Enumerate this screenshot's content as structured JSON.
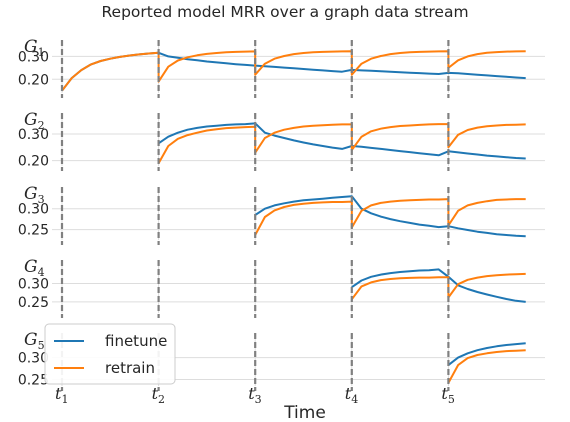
{
  "chart_data": {
    "type": "line",
    "title": "Reported model MRR over a graph data stream",
    "xlabel": "Time",
    "ylabel": "",
    "grid": true,
    "legend_location": "lower-left of last panel",
    "x_range": [
      0,
      50
    ],
    "event_ticks": [
      {
        "x": 0,
        "base": "t",
        "sub": "1"
      },
      {
        "x": 10,
        "base": "t",
        "sub": "2"
      },
      {
        "x": 20,
        "base": "t",
        "sub": "3"
      },
      {
        "x": 30,
        "base": "t",
        "sub": "4"
      },
      {
        "x": 40,
        "base": "t",
        "sub": "5"
      }
    ],
    "colors": {
      "finetune": "#1f77b4",
      "retrain": "#ff7f0e",
      "event_line": "#808080",
      "grid": "#dddddd"
    },
    "legend": [
      "finetune",
      "retrain"
    ],
    "panels": [
      {
        "label_base": "G",
        "label_sub": "1",
        "ylim": [
          0.14,
          0.35
        ],
        "yticks": [
          0.2,
          0.3
        ],
        "ytick_labels": [
          "0.20",
          "0.30"
        ],
        "series": [
          {
            "name": "finetune",
            "x": [
              0,
              1,
              2,
              3,
              4,
              5,
              6,
              7,
              8,
              9,
              10,
              11,
              12,
              13,
              14,
              15,
              16,
              17,
              18,
              19,
              20,
              21,
              22,
              23,
              24,
              25,
              26,
              27,
              28,
              29,
              30,
              31,
              32,
              33,
              34,
              35,
              36,
              37,
              38,
              39,
              40,
              41,
              42,
              43,
              44,
              45,
              46,
              47,
              48
            ],
            "y": [
              0.15,
              0.205,
              0.24,
              0.265,
              0.28,
              0.29,
              0.298,
              0.304,
              0.309,
              0.313,
              0.316,
              0.3,
              0.294,
              0.288,
              0.283,
              0.278,
              0.274,
              0.27,
              0.266,
              0.263,
              0.26,
              0.257,
              0.254,
              0.251,
              0.248,
              0.245,
              0.242,
              0.239,
              0.236,
              0.233,
              0.241,
              0.239,
              0.237,
              0.235,
              0.233,
              0.231,
              0.229,
              0.227,
              0.225,
              0.223,
              0.228,
              0.226,
              0.223,
              0.22,
              0.217,
              0.214,
              0.211,
              0.208,
              0.205
            ]
          },
          {
            "name": "retrain",
            "x": [
              0,
              1,
              2,
              3,
              4,
              5,
              6,
              7,
              8,
              9,
              10,
              10,
              11,
              12,
              13,
              14,
              15,
              16,
              17,
              18,
              19,
              20,
              20,
              21,
              22,
              23,
              24,
              25,
              26,
              27,
              28,
              29,
              30,
              30,
              31,
              32,
              33,
              34,
              35,
              36,
              37,
              38,
              39,
              40,
              40,
              41,
              42,
              43,
              44,
              45,
              46,
              47,
              48
            ],
            "y": [
              0.15,
              0.205,
              0.24,
              0.265,
              0.28,
              0.29,
              0.298,
              0.304,
              0.309,
              0.313,
              0.316,
              0.19,
              0.255,
              0.282,
              0.296,
              0.305,
              0.311,
              0.315,
              0.318,
              0.32,
              0.321,
              0.322,
              0.22,
              0.268,
              0.29,
              0.302,
              0.31,
              0.315,
              0.318,
              0.32,
              0.321,
              0.322,
              0.323,
              0.22,
              0.268,
              0.29,
              0.302,
              0.31,
              0.315,
              0.318,
              0.32,
              0.321,
              0.322,
              0.323,
              0.25,
              0.283,
              0.3,
              0.31,
              0.316,
              0.319,
              0.321,
              0.322,
              0.323
            ]
          }
        ]
      },
      {
        "label_base": "G",
        "label_sub": "2",
        "ylim": [
          0.18,
          0.36
        ],
        "yticks": [
          0.2,
          0.3
        ],
        "ytick_labels": [
          "0.20",
          "0.30"
        ],
        "series": [
          {
            "name": "finetune",
            "x": [
              10,
              11,
              12,
              13,
              14,
              15,
              16,
              17,
              18,
              19,
              20,
              21,
              22,
              23,
              24,
              25,
              26,
              27,
              28,
              29,
              30,
              31,
              32,
              33,
              34,
              35,
              36,
              37,
              38,
              39,
              40,
              41,
              42,
              43,
              44,
              45,
              46,
              47,
              48
            ],
            "y": [
              0.265,
              0.29,
              0.305,
              0.316,
              0.323,
              0.328,
              0.331,
              0.334,
              0.336,
              0.337,
              0.34,
              0.305,
              0.294,
              0.285,
              0.276,
              0.268,
              0.261,
              0.255,
              0.249,
              0.244,
              0.255,
              0.252,
              0.248,
              0.244,
              0.24,
              0.236,
              0.232,
              0.228,
              0.224,
              0.22,
              0.235,
              0.231,
              0.227,
              0.223,
              0.219,
              0.216,
              0.213,
              0.21,
              0.208
            ]
          },
          {
            "name": "retrain",
            "x": [
              10,
              11,
              12,
              13,
              14,
              15,
              16,
              17,
              18,
              19,
              20,
              20,
              21,
              22,
              23,
              24,
              25,
              26,
              27,
              28,
              29,
              30,
              30,
              31,
              32,
              33,
              34,
              35,
              36,
              37,
              38,
              39,
              40,
              40,
              41,
              42,
              43,
              44,
              45,
              46,
              47,
              48
            ],
            "y": [
              0.19,
              0.255,
              0.282,
              0.296,
              0.305,
              0.313,
              0.318,
              0.322,
              0.324,
              0.326,
              0.327,
              0.23,
              0.285,
              0.305,
              0.316,
              0.323,
              0.328,
              0.331,
              0.333,
              0.335,
              0.336,
              0.336,
              0.24,
              0.29,
              0.31,
              0.32,
              0.326,
              0.33,
              0.332,
              0.334,
              0.336,
              0.337,
              0.337,
              0.25,
              0.297,
              0.315,
              0.324,
              0.329,
              0.332,
              0.334,
              0.335,
              0.336
            ]
          }
        ]
      },
      {
        "label_base": "G",
        "label_sub": "3",
        "ylim": [
          0.225,
          0.34
        ],
        "yticks": [
          0.25,
          0.3
        ],
        "ytick_labels": [
          "0.25",
          "0.30"
        ],
        "series": [
          {
            "name": "finetune",
            "x": [
              20,
              21,
              22,
              23,
              24,
              25,
              26,
              27,
              28,
              29,
              30,
              31,
              32,
              33,
              34,
              35,
              36,
              37,
              38,
              39,
              40,
              41,
              42,
              43,
              44,
              45,
              46,
              47,
              48
            ],
            "y": [
              0.285,
              0.3,
              0.308,
              0.313,
              0.317,
              0.32,
              0.322,
              0.324,
              0.326,
              0.328,
              0.33,
              0.3,
              0.289,
              0.281,
              0.275,
              0.27,
              0.266,
              0.262,
              0.259,
              0.256,
              0.258,
              0.253,
              0.249,
              0.245,
              0.242,
              0.239,
              0.237,
              0.235,
              0.234
            ]
          },
          {
            "name": "retrain",
            "x": [
              20,
              21,
              22,
              23,
              24,
              25,
              26,
              27,
              28,
              29,
              30,
              30,
              31,
              32,
              33,
              34,
              35,
              36,
              37,
              38,
              39,
              40,
              40,
              41,
              42,
              43,
              44,
              45,
              46,
              47,
              48
            ],
            "y": [
              0.237,
              0.28,
              0.296,
              0.304,
              0.309,
              0.312,
              0.314,
              0.315,
              0.316,
              0.316,
              0.317,
              0.255,
              0.295,
              0.308,
              0.314,
              0.317,
              0.319,
              0.32,
              0.321,
              0.322,
              0.322,
              0.323,
              0.26,
              0.295,
              0.308,
              0.314,
              0.318,
              0.321,
              0.322,
              0.323,
              0.323
            ]
          }
        ]
      },
      {
        "label_base": "G",
        "label_sub": "4",
        "ylim": [
          0.22,
          0.35
        ],
        "yticks": [
          0.25,
          0.3
        ],
        "ytick_labels": [
          "0.25",
          "0.30"
        ],
        "series": [
          {
            "name": "finetune",
            "x": [
              30,
              31,
              32,
              33,
              34,
              35,
              36,
              37,
              38,
              39,
              40,
              41,
              42,
              43,
              44,
              45,
              46,
              47,
              48
            ],
            "y": [
              0.29,
              0.308,
              0.318,
              0.324,
              0.328,
              0.331,
              0.333,
              0.335,
              0.336,
              0.338,
              0.318,
              0.295,
              0.285,
              0.277,
              0.27,
              0.264,
              0.258,
              0.253,
              0.25
            ]
          },
          {
            "name": "retrain",
            "x": [
              30,
              31,
              32,
              33,
              34,
              35,
              36,
              37,
              38,
              39,
              40,
              40,
              41,
              42,
              43,
              44,
              45,
              46,
              47,
              48
            ],
            "y": [
              0.257,
              0.292,
              0.303,
              0.309,
              0.312,
              0.314,
              0.315,
              0.316,
              0.316,
              0.317,
              0.317,
              0.262,
              0.298,
              0.31,
              0.316,
              0.32,
              0.322,
              0.324,
              0.325,
              0.326
            ]
          }
        ]
      },
      {
        "label_base": "G",
        "label_sub": "5",
        "ylim": [
          0.235,
          0.345
        ],
        "yticks": [
          0.25,
          0.3
        ],
        "ytick_labels": [
          "0.25",
          "0.30"
        ],
        "series": [
          {
            "name": "finetune",
            "x": [
              40,
              41,
              42,
              43,
              44,
              45,
              46,
              47,
              48
            ],
            "y": [
              0.283,
              0.3,
              0.31,
              0.317,
              0.322,
              0.326,
              0.329,
              0.331,
              0.333
            ]
          },
          {
            "name": "retrain",
            "x": [
              40,
              41,
              42,
              43,
              44,
              45,
              46,
              47,
              48
            ],
            "y": [
              0.242,
              0.283,
              0.299,
              0.306,
              0.31,
              0.313,
              0.315,
              0.316,
              0.317
            ]
          }
        ]
      }
    ]
  }
}
